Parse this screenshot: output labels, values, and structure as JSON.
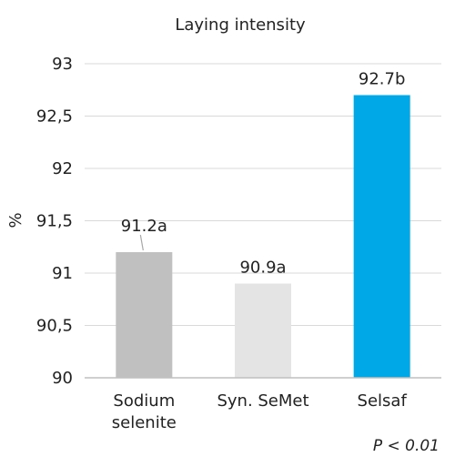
{
  "chart_data": {
    "type": "bar",
    "title": "Laying intensity",
    "ylabel": "%",
    "xlabel": "",
    "ylim": [
      90,
      93
    ],
    "yticks": [
      {
        "value": 90,
        "label": "90"
      },
      {
        "value": 90.5,
        "label": "90,5"
      },
      {
        "value": 91,
        "label": "91"
      },
      {
        "value": 91.5,
        "label": "91,5"
      },
      {
        "value": 92,
        "label": "92"
      },
      {
        "value": 92.5,
        "label": "92,5"
      },
      {
        "value": 93,
        "label": "93"
      }
    ],
    "categories": [
      {
        "lines": [
          "Sodium",
          "selenite"
        ]
      },
      {
        "lines": [
          "Syn. SeMet"
        ]
      },
      {
        "lines": [
          "Selsaf"
        ]
      }
    ],
    "values": [
      91.2,
      90.9,
      92.7
    ],
    "data_labels": [
      "91.2a",
      "90.9a",
      "92.7b"
    ],
    "colors": [
      "#c0c0c0",
      "#e4e4e4",
      "#00a8e8"
    ],
    "grid": true,
    "annotation": "P < 0.01"
  },
  "style": {
    "grid_color": "#d9d9d9",
    "axis_color": "#bfbfbf",
    "leader_color": "#a8a8a8"
  }
}
